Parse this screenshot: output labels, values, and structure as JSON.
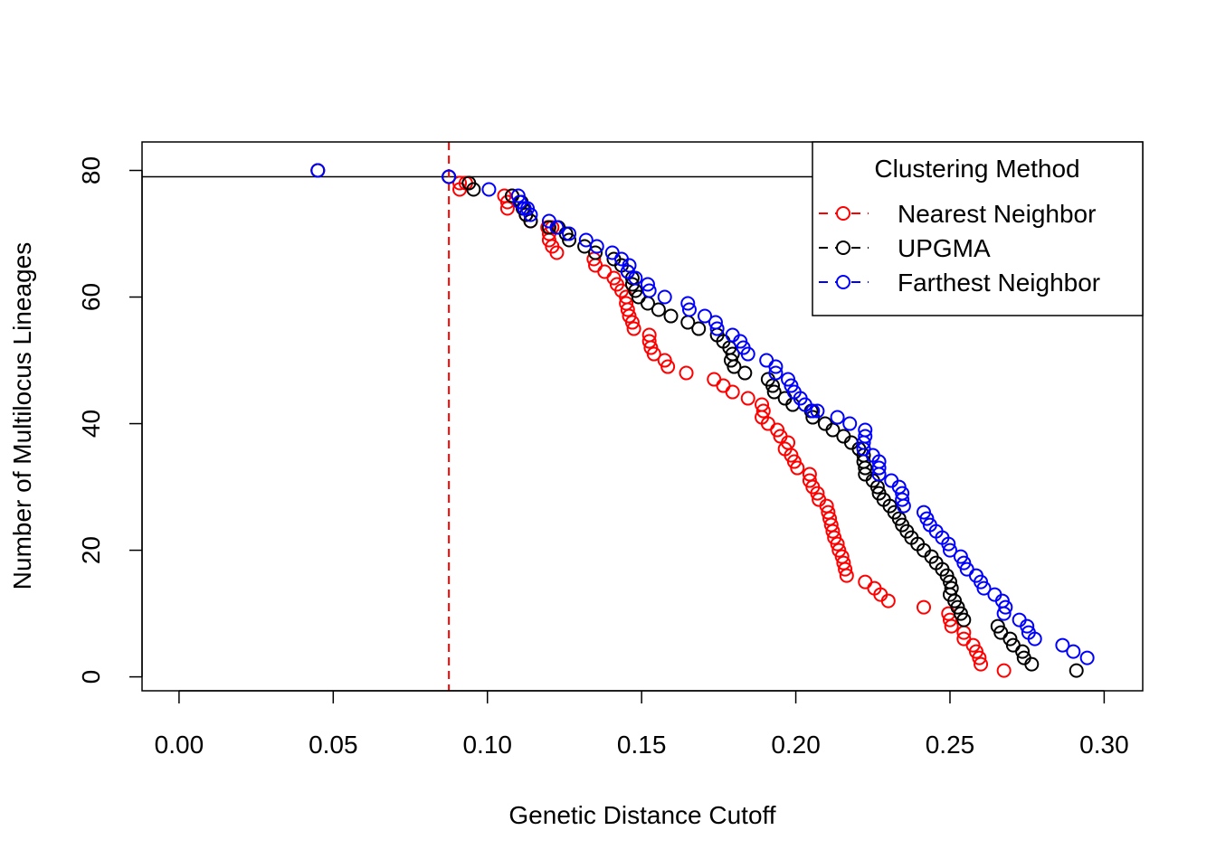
{
  "chart_data": {
    "type": "scatter",
    "xlabel": "Genetic Distance Cutoff",
    "ylabel": "Number of Multilocus Lineages",
    "xlim": [
      -0.012,
      0.3125
    ],
    "ylim": [
      -2.2,
      84.5
    ],
    "x_ticks": [
      "0.00",
      "0.05",
      "0.10",
      "0.15",
      "0.20",
      "0.25",
      "0.30"
    ],
    "y_ticks": [
      "0",
      "20",
      "40",
      "60",
      "80"
    ],
    "hline": 79,
    "vline": 0.0875,
    "legend": {
      "title": "Clustering Method",
      "position": "top-right",
      "entries": [
        {
          "label": "Nearest Neighbor",
          "color": "#ff0000"
        },
        {
          "label": "UPGMA",
          "color": "#000000"
        },
        {
          "label": "Farthest Neighbor",
          "color": "#0000ff"
        }
      ]
    },
    "series": [
      {
        "name": "Nearest Neighbor",
        "color": "#ff0000",
        "points": [
          [
            0.045,
            80
          ],
          [
            0.0875,
            79
          ],
          [
            0.091,
            78
          ],
          [
            0.093,
            78
          ],
          [
            0.091,
            77
          ],
          [
            0.1055,
            76
          ],
          [
            0.108,
            76
          ],
          [
            0.1065,
            75
          ],
          [
            0.1065,
            74
          ],
          [
            0.1125,
            73
          ],
          [
            0.114,
            72
          ],
          [
            0.1195,
            71
          ],
          [
            0.121,
            71
          ],
          [
            0.12,
            70
          ],
          [
            0.12,
            69
          ],
          [
            0.121,
            68
          ],
          [
            0.1225,
            67
          ],
          [
            0.1345,
            66
          ],
          [
            0.135,
            65
          ],
          [
            0.138,
            64
          ],
          [
            0.141,
            63
          ],
          [
            0.142,
            62
          ],
          [
            0.1435,
            61
          ],
          [
            0.145,
            60
          ],
          [
            0.145,
            59
          ],
          [
            0.1455,
            58
          ],
          [
            0.146,
            57
          ],
          [
            0.147,
            56
          ],
          [
            0.1475,
            55
          ],
          [
            0.1525,
            54
          ],
          [
            0.1525,
            53
          ],
          [
            0.153,
            52
          ],
          [
            0.154,
            51
          ],
          [
            0.1575,
            50
          ],
          [
            0.1585,
            49
          ],
          [
            0.1645,
            48
          ],
          [
            0.1735,
            47
          ],
          [
            0.1765,
            46
          ],
          [
            0.1795,
            45
          ],
          [
            0.1845,
            44
          ],
          [
            0.189,
            43
          ],
          [
            0.1895,
            42
          ],
          [
            0.189,
            41
          ],
          [
            0.191,
            40
          ],
          [
            0.194,
            39
          ],
          [
            0.195,
            38
          ],
          [
            0.1975,
            37
          ],
          [
            0.1965,
            36
          ],
          [
            0.1985,
            35
          ],
          [
            0.1995,
            34
          ],
          [
            0.2005,
            33
          ],
          [
            0.2045,
            32
          ],
          [
            0.2045,
            31
          ],
          [
            0.2055,
            30
          ],
          [
            0.207,
            29
          ],
          [
            0.2075,
            28
          ],
          [
            0.21,
            27
          ],
          [
            0.2105,
            26
          ],
          [
            0.211,
            25
          ],
          [
            0.2115,
            24
          ],
          [
            0.212,
            23
          ],
          [
            0.2125,
            22
          ],
          [
            0.2135,
            21
          ],
          [
            0.214,
            20
          ],
          [
            0.215,
            19
          ],
          [
            0.2155,
            18
          ],
          [
            0.216,
            17
          ],
          [
            0.2165,
            16
          ],
          [
            0.2225,
            15
          ],
          [
            0.2255,
            14
          ],
          [
            0.2275,
            13
          ],
          [
            0.23,
            12
          ],
          [
            0.2415,
            11
          ],
          [
            0.2495,
            10
          ],
          [
            0.25,
            9
          ],
          [
            0.2505,
            8
          ],
          [
            0.2545,
            7
          ],
          [
            0.2545,
            6
          ],
          [
            0.2575,
            5
          ],
          [
            0.2585,
            4
          ],
          [
            0.2595,
            3
          ],
          [
            0.26,
            2
          ],
          [
            0.2675,
            1
          ]
        ]
      },
      {
        "name": "UPGMA",
        "color": "#000000",
        "points": [
          [
            0.045,
            80
          ],
          [
            0.0875,
            79
          ],
          [
            0.094,
            78
          ],
          [
            0.0955,
            77
          ],
          [
            0.108,
            76
          ],
          [
            0.111,
            75
          ],
          [
            0.1115,
            74
          ],
          [
            0.1125,
            73
          ],
          [
            0.114,
            72
          ],
          [
            0.12,
            71
          ],
          [
            0.123,
            71
          ],
          [
            0.1255,
            70
          ],
          [
            0.1265,
            69
          ],
          [
            0.1315,
            68
          ],
          [
            0.135,
            67
          ],
          [
            0.141,
            66
          ],
          [
            0.1435,
            65
          ],
          [
            0.1455,
            64
          ],
          [
            0.147,
            63
          ],
          [
            0.147,
            62
          ],
          [
            0.148,
            61
          ],
          [
            0.149,
            60
          ],
          [
            0.152,
            59
          ],
          [
            0.1555,
            58
          ],
          [
            0.1595,
            57
          ],
          [
            0.165,
            56
          ],
          [
            0.1685,
            55
          ],
          [
            0.1745,
            54
          ],
          [
            0.1765,
            53
          ],
          [
            0.1785,
            52
          ],
          [
            0.1795,
            51
          ],
          [
            0.179,
            50
          ],
          [
            0.18,
            49
          ],
          [
            0.1835,
            48
          ],
          [
            0.191,
            47
          ],
          [
            0.1925,
            46
          ],
          [
            0.193,
            45
          ],
          [
            0.1965,
            44
          ],
          [
            0.199,
            43
          ],
          [
            0.205,
            42
          ],
          [
            0.2055,
            41
          ],
          [
            0.2095,
            40
          ],
          [
            0.212,
            39
          ],
          [
            0.2155,
            38
          ],
          [
            0.218,
            37
          ],
          [
            0.2205,
            36
          ],
          [
            0.222,
            35
          ],
          [
            0.222,
            34
          ],
          [
            0.2225,
            33
          ],
          [
            0.2225,
            32
          ],
          [
            0.225,
            31
          ],
          [
            0.2265,
            30
          ],
          [
            0.227,
            29
          ],
          [
            0.2285,
            28
          ],
          [
            0.2305,
            27
          ],
          [
            0.232,
            26
          ],
          [
            0.2335,
            25
          ],
          [
            0.2345,
            24
          ],
          [
            0.236,
            23
          ],
          [
            0.2375,
            22
          ],
          [
            0.2395,
            21
          ],
          [
            0.2415,
            20
          ],
          [
            0.244,
            19
          ],
          [
            0.2455,
            18
          ],
          [
            0.2475,
            17
          ],
          [
            0.249,
            16
          ],
          [
            0.25,
            15
          ],
          [
            0.2505,
            14
          ],
          [
            0.25,
            13
          ],
          [
            0.2515,
            12
          ],
          [
            0.2525,
            11
          ],
          [
            0.2535,
            10
          ],
          [
            0.2545,
            9
          ],
          [
            0.2655,
            8
          ],
          [
            0.2665,
            7
          ],
          [
            0.2695,
            6
          ],
          [
            0.2705,
            5
          ],
          [
            0.2735,
            4
          ],
          [
            0.274,
            3
          ],
          [
            0.2765,
            2
          ],
          [
            0.291,
            1
          ]
        ]
      },
      {
        "name": "Farthest Neighbor",
        "color": "#0000ff",
        "points": [
          [
            0.045,
            80
          ],
          [
            0.0875,
            79
          ],
          [
            0.1005,
            77
          ],
          [
            0.11,
            76
          ],
          [
            0.1105,
            75
          ],
          [
            0.112,
            74
          ],
          [
            0.113,
            74
          ],
          [
            0.114,
            73
          ],
          [
            0.12,
            72
          ],
          [
            0.1225,
            71
          ],
          [
            0.1265,
            70
          ],
          [
            0.132,
            69
          ],
          [
            0.1355,
            68
          ],
          [
            0.1405,
            67
          ],
          [
            0.1435,
            66
          ],
          [
            0.146,
            65
          ],
          [
            0.1455,
            64
          ],
          [
            0.148,
            63
          ],
          [
            0.152,
            62
          ],
          [
            0.1525,
            61
          ],
          [
            0.1575,
            60
          ],
          [
            0.165,
            59
          ],
          [
            0.1655,
            58
          ],
          [
            0.1705,
            57
          ],
          [
            0.174,
            56
          ],
          [
            0.1745,
            55
          ],
          [
            0.1795,
            54
          ],
          [
            0.182,
            53
          ],
          [
            0.183,
            52
          ],
          [
            0.1845,
            51
          ],
          [
            0.1905,
            50
          ],
          [
            0.1935,
            49
          ],
          [
            0.1935,
            48
          ],
          [
            0.1975,
            47
          ],
          [
            0.1985,
            46
          ],
          [
            0.1995,
            45
          ],
          [
            0.2015,
            44
          ],
          [
            0.203,
            43
          ],
          [
            0.2055,
            42
          ],
          [
            0.207,
            42
          ],
          [
            0.2135,
            41
          ],
          [
            0.2175,
            40
          ],
          [
            0.2225,
            39
          ],
          [
            0.2225,
            38
          ],
          [
            0.222,
            37
          ],
          [
            0.222,
            36
          ],
          [
            0.225,
            35
          ],
          [
            0.227,
            34
          ],
          [
            0.227,
            33
          ],
          [
            0.227,
            32
          ],
          [
            0.231,
            31
          ],
          [
            0.2335,
            30
          ],
          [
            0.2345,
            29
          ],
          [
            0.2345,
            28
          ],
          [
            0.235,
            27
          ],
          [
            0.2415,
            26
          ],
          [
            0.2425,
            25
          ],
          [
            0.2435,
            24
          ],
          [
            0.2455,
            23
          ],
          [
            0.2475,
            22
          ],
          [
            0.2495,
            21
          ],
          [
            0.25,
            20
          ],
          [
            0.2535,
            19
          ],
          [
            0.2545,
            18
          ],
          [
            0.2555,
            17
          ],
          [
            0.2585,
            16
          ],
          [
            0.26,
            15
          ],
          [
            0.261,
            14
          ],
          [
            0.2645,
            13
          ],
          [
            0.267,
            12
          ],
          [
            0.268,
            11
          ],
          [
            0.2675,
            10
          ],
          [
            0.2725,
            9
          ],
          [
            0.275,
            8
          ],
          [
            0.2755,
            7
          ],
          [
            0.2775,
            6
          ],
          [
            0.2865,
            5
          ],
          [
            0.29,
            4
          ],
          [
            0.2945,
            3
          ]
        ]
      }
    ]
  }
}
